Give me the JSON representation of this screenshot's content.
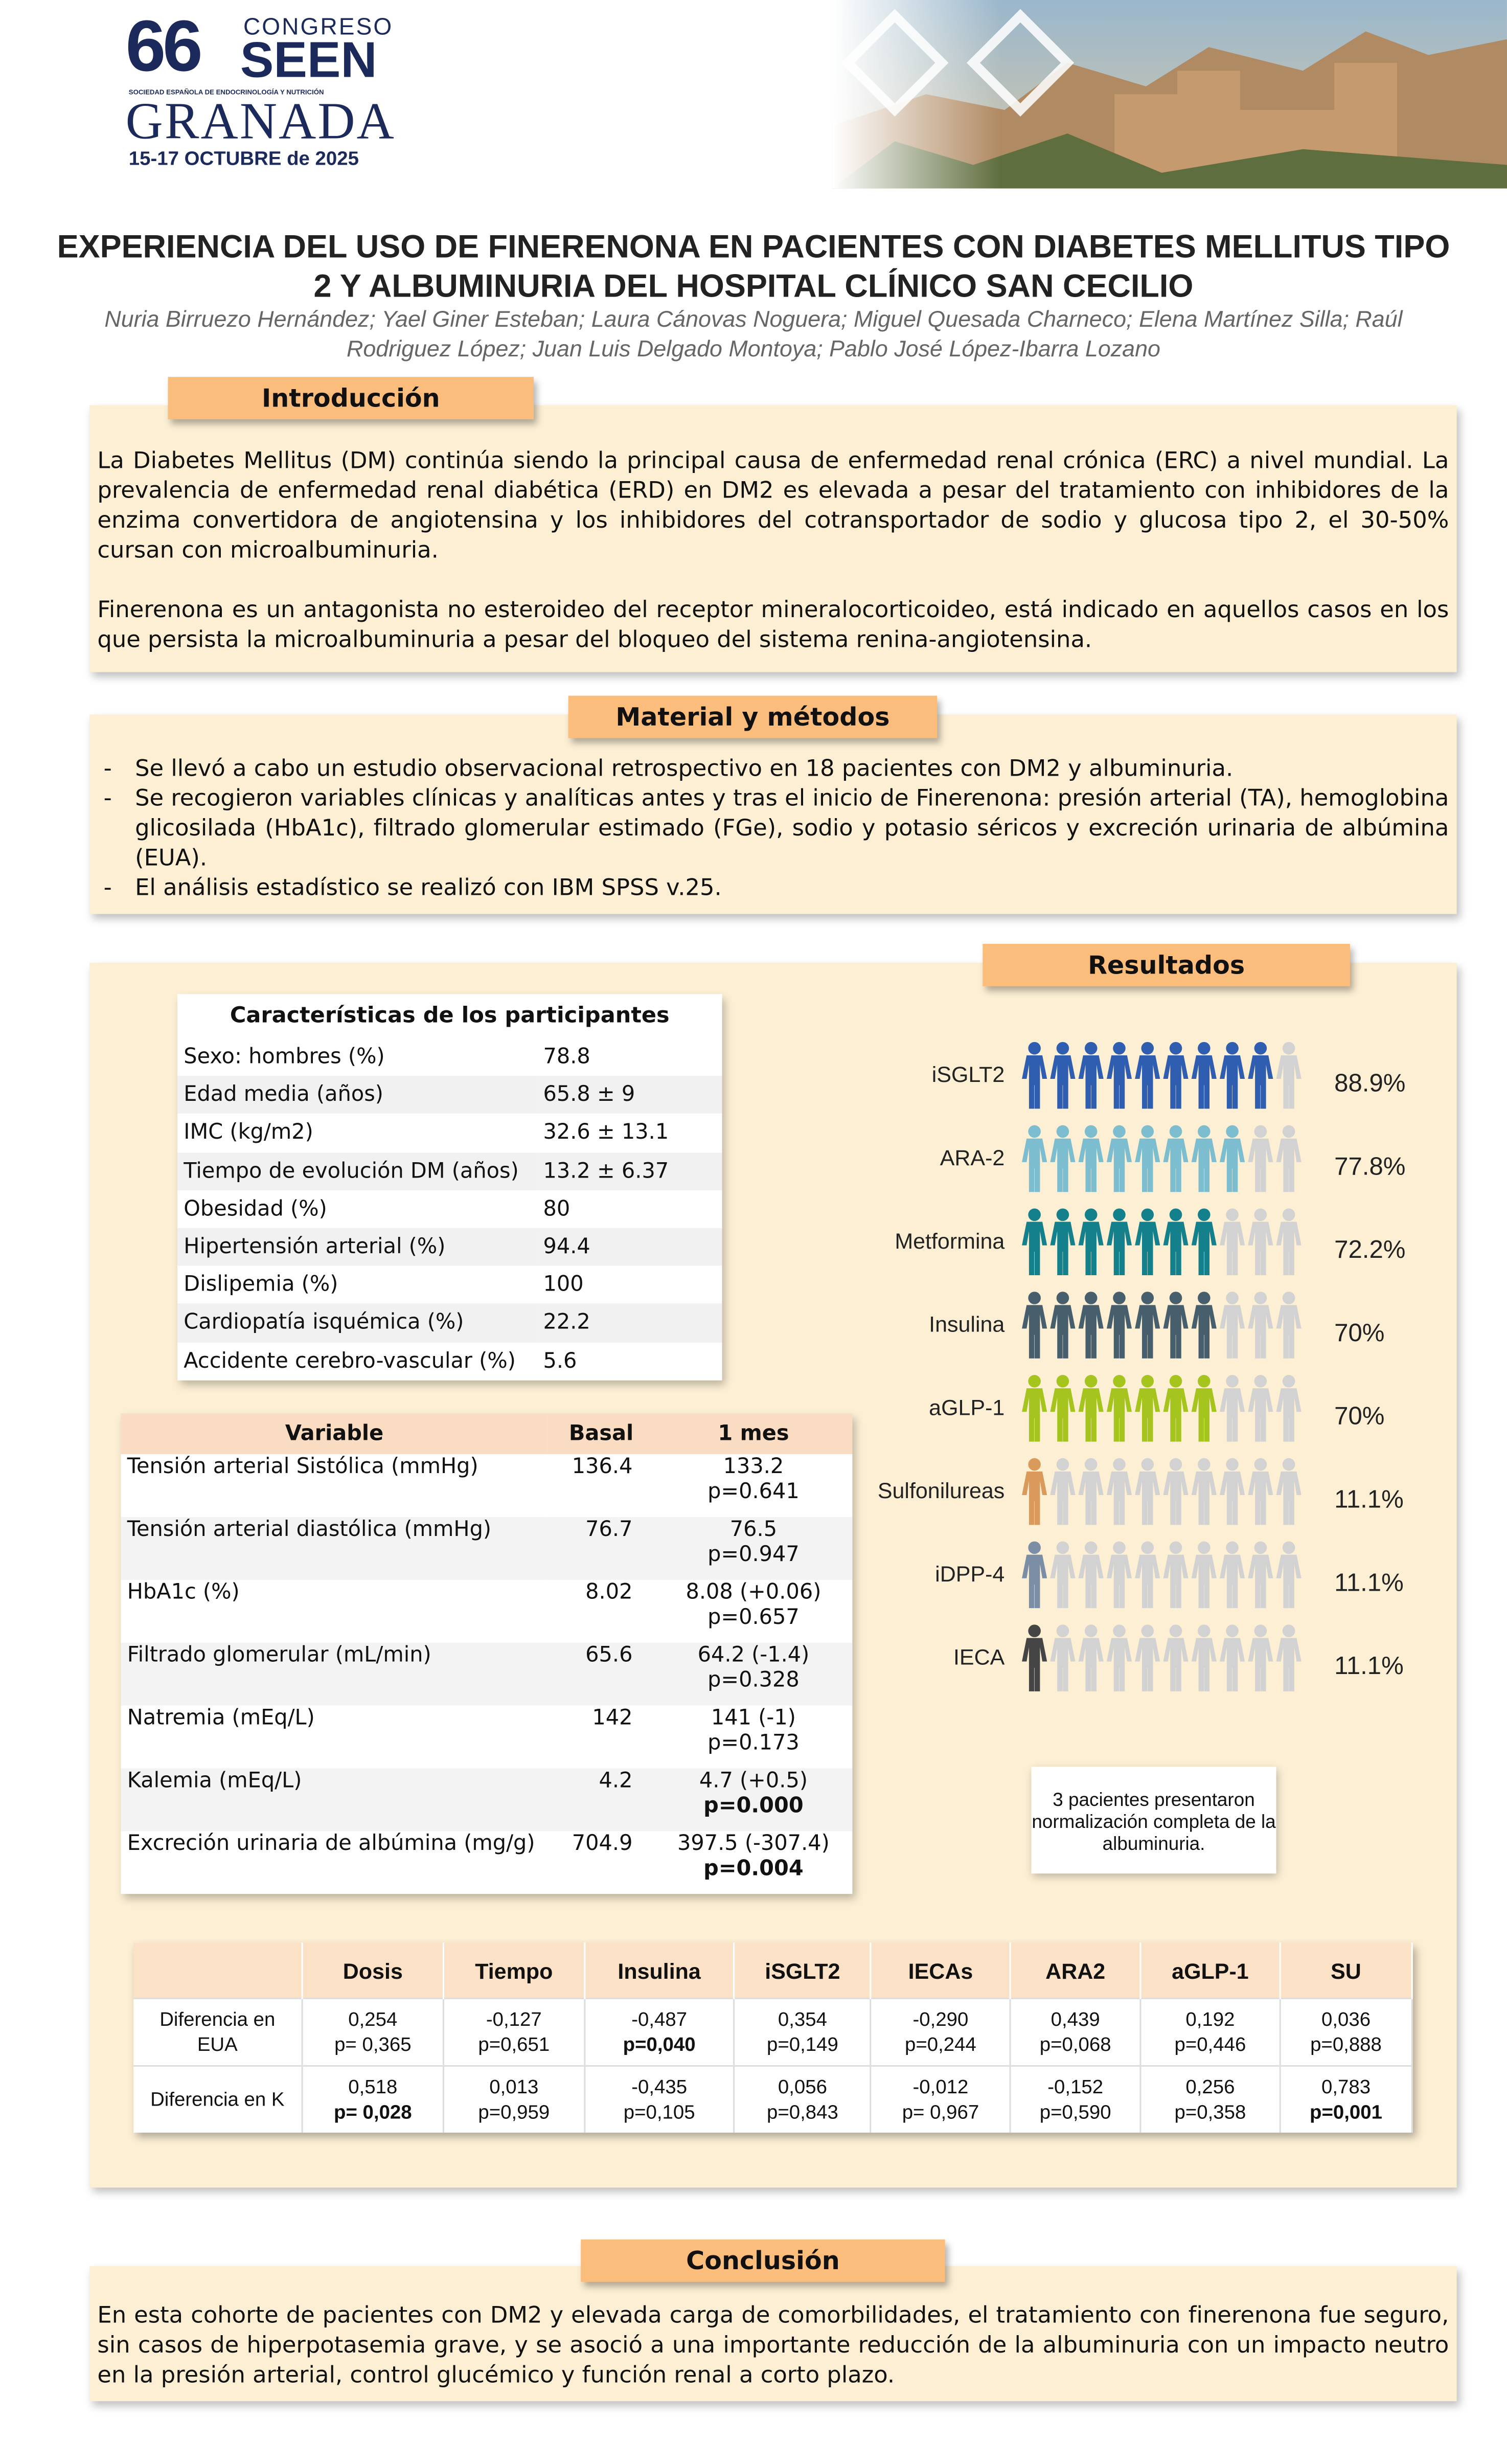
{
  "header": {
    "number": "66",
    "congress": "CONGRESO",
    "acronym": "SEEN",
    "society": "SOCIEDAD ESPAÑOLA DE ENDOCRINOLOGÍA Y NUTRICIÓN",
    "city": "GRANADA",
    "dates": "15-17 OCTUBRE de 2025"
  },
  "title": "EXPERIENCIA DEL USO DE FINERENONA EN PACIENTES CON DIABETES MELLITUS TIPO 2 Y ALBUMINURIA DEL HOSPITAL CLÍNICO SAN CECILIO",
  "authors": "Nuria Birruezo Hernández; Yael Giner Esteban; Laura Cánovas Noguera; Miguel Quesada Charneco; Elena Martínez Silla; Raúl Rodriguez López; Juan Luis Delgado Montoya; Pablo José López-Ibarra Lozano",
  "introduction": {
    "heading": "Introducción",
    "paragraphs": [
      "La Diabetes Mellitus (DM) continúa siendo la principal causa de enfermedad renal crónica (ERC) a nivel mundial. La prevalencia de enfermedad renal diabética (ERD) en DM2 es elevada a pesar del tratamiento con inhibidores de la enzima convertidora de angiotensina y los inhibidores del cotransportador de sodio y glucosa tipo 2, el 30-50% cursan con microalbuminuria.",
      "Finerenona es un antagonista no esteroideo del receptor mineralocorticoideo, está indicado en aquellos casos en los que persista la microalbuminuria a pesar del bloqueo del sistema renina-angiotensina."
    ]
  },
  "methods": {
    "heading": "Material y métodos",
    "items": [
      "Se llevó a cabo un estudio observacional retrospectivo en 18 pacientes con DM2 y albuminuria.",
      "Se recogieron variables clínicas y analíticas antes y tras el inicio de Finerenona: presión arterial (TA), hemoglobina glicosilada (HbA1c), filtrado glomerular estimado (FGe), sodio y potasio séricos y excreción urinaria de albúmina (EUA).",
      "El análisis estadístico se realizó con IBM SPSS v.25."
    ]
  },
  "results": {
    "heading": "Resultados",
    "characteristics": {
      "title": "Características de los participantes",
      "rows": [
        [
          "Sexo: hombres (%)",
          "78.8"
        ],
        [
          "Edad media (años)",
          "65.8 ± 9"
        ],
        [
          "IMC (kg/m2)",
          "32.6 ± 13.1"
        ],
        [
          "Tiempo de evolución DM (años)",
          "13.2 ± 6.37"
        ],
        [
          "Obesidad (%)",
          "80"
        ],
        [
          "Hipertensión arterial (%)",
          "94.4"
        ],
        [
          "Dislipemia (%)",
          "100"
        ],
        [
          "Cardiopatía isquémica (%)",
          "22.2"
        ],
        [
          "Accidente cerebro-vascular (%)",
          "5.6"
        ]
      ]
    },
    "variables": {
      "headers": [
        "Variable",
        "Basal",
        "1 mes"
      ],
      "rows": [
        {
          "variable": "Tensión arterial Sistólica (mmHg)",
          "basal": "136.4",
          "month": "133.2",
          "p": "p=0.641",
          "bold": false
        },
        {
          "variable": "Tensión arterial diastólica (mmHg)",
          "basal": "76.7",
          "month": "76.5",
          "p": "p=0.947",
          "bold": false
        },
        {
          "variable": "HbA1c (%)",
          "basal": "8.02",
          "month": "8.08 (+0.06)",
          "p": "p=0.657",
          "bold": false
        },
        {
          "variable": "Filtrado glomerular (mL/min)",
          "basal": "65.6",
          "month": "64.2 (-1.4)",
          "p": "p=0.328",
          "bold": false
        },
        {
          "variable": "Natremia (mEq/L)",
          "basal": "142",
          "month": "141 (-1)",
          "p": "p=0.173",
          "bold": false
        },
        {
          "variable": "Kalemia (mEq/L)",
          "basal": "4.2",
          "month": "4.7 (+0.5)",
          "p": "p=0.000",
          "bold": true
        },
        {
          "variable": "Excreción urinaria de albúmina (mg/g)",
          "basal": "704.9",
          "month": "397.5 (-307.4)",
          "p": "p=0.004",
          "bold": true
        }
      ]
    },
    "treatments": [
      {
        "name": "iSGLT2",
        "value": 88.9,
        "value_label": "88.9%",
        "color": "#2f5db0"
      },
      {
        "name": "ARA-2",
        "value": 77.8,
        "value_label": "77.8%",
        "color": "#7cbdd0"
      },
      {
        "name": "Metformina",
        "value": 72.2,
        "value_label": "72.2%",
        "color": "#13808b"
      },
      {
        "name": "Insulina",
        "value": 70,
        "value_label": "70%",
        "color": "#475f6d"
      },
      {
        "name": "aGLP-1",
        "value": 70,
        "value_label": "70%",
        "color": "#a6c41e"
      },
      {
        "name": "Sulfonilureas",
        "value": 11.1,
        "value_label": "11.1%",
        "color": "#d99a5b"
      },
      {
        "name": "iDPP-4",
        "value": 11.1,
        "value_label": "11.1%",
        "color": "#7b8ea6"
      },
      {
        "name": "IECA",
        "value": 11.1,
        "value_label": "11.1%",
        "color": "#454545"
      }
    ],
    "note": "3 pacientes presentaron normalización completa de la albuminuria.",
    "correlations": {
      "headers": [
        "Dosis",
        "Tiempo",
        "Insulina",
        "iSGLT2",
        "IECAs",
        "ARA2",
        "aGLP-1",
        "SU"
      ],
      "rows": [
        {
          "label": "Diferencia en EUA",
          "cells": [
            {
              "value": "0,254",
              "p": "p= 0,365",
              "bold": false
            },
            {
              "value": "-0,127",
              "p": "p=0,651",
              "bold": false
            },
            {
              "value": "-0,487",
              "p": "p=0,040",
              "bold": true
            },
            {
              "value": "0,354",
              "p": "p=0,149",
              "bold": false
            },
            {
              "value": "-0,290",
              "p": "p=0,244",
              "bold": false
            },
            {
              "value": "0,439",
              "p": "p=0,068",
              "bold": false
            },
            {
              "value": "0,192",
              "p": "p=0,446",
              "bold": false
            },
            {
              "value": "0,036",
              "p": "p=0,888",
              "bold": false
            }
          ]
        },
        {
          "label": "Diferencia en K",
          "cells": [
            {
              "value": "0,518",
              "p": "p= 0,028",
              "bold": true
            },
            {
              "value": "0,013",
              "p": "p=0,959",
              "bold": false
            },
            {
              "value": "-0,435",
              "p": "p=0,105",
              "bold": false
            },
            {
              "value": "0,056",
              "p": "p=0,843",
              "bold": false
            },
            {
              "value": "-0,012",
              "p": "p= 0,967",
              "bold": false
            },
            {
              "value": "-0,152",
              "p": "p=0,590",
              "bold": false
            },
            {
              "value": "0,256",
              "p": "p=0,358",
              "bold": false
            },
            {
              "value": "0,783",
              "p": "p=0,001",
              "bold": true
            }
          ]
        }
      ]
    }
  },
  "conclusion": {
    "heading": "Conclusión",
    "text": "En esta cohorte de pacientes con DM2 y elevada carga de comorbilidades, el tratamiento con finerenona fue seguro, sin casos de hiperpotasemia grave, y se asoció a una importante reducción de la albuminuria con un impacto neutro en la presión arterial, control glucémico y función renal a corto plazo."
  }
}
